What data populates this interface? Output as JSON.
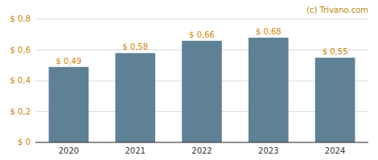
{
  "chart_data": {
    "type": "bar",
    "categories": [
      "2020",
      "2021",
      "2022",
      "2023",
      "2024"
    ],
    "values": [
      0.49,
      0.58,
      0.66,
      0.68,
      0.55
    ],
    "value_labels": [
      "$ 0,49",
      "$ 0,58",
      "$ 0,66",
      "$ 0,68",
      "$ 0,55"
    ],
    "data_labels": true,
    "color": "#5f8195",
    "ylim": [
      0,
      0.8
    ],
    "yticks": [
      {
        "value": 0,
        "label": "$ 0"
      },
      {
        "value": 0.2,
        "label": "$ 0,2"
      },
      {
        "value": 0.4,
        "label": "$ 0,4"
      },
      {
        "value": 0.6,
        "label": "$ 0,6"
      },
      {
        "value": 0.8,
        "label": "$ 0,8"
      }
    ],
    "grid": true,
    "annotations": [
      "(c) Trivano.com"
    ]
  }
}
